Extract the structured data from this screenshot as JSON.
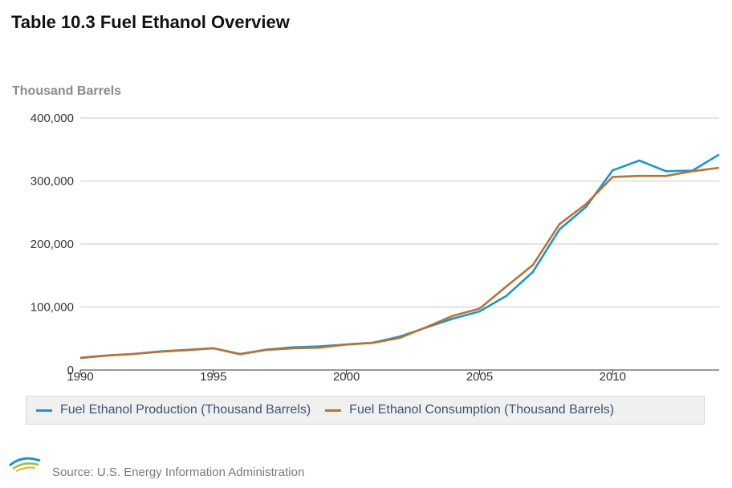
{
  "title": "Table 10.3 Fuel Ethanol Overview",
  "legend_items": [
    {
      "label": "Fuel Ethanol Production (Thousand Barrels)",
      "color": "#1b95d2"
    },
    {
      "label": "Fuel Ethanol Consumption (Thousand Barrels)",
      "color": "#b87333"
    }
  ],
  "source": {
    "logo_text": "eia",
    "text": "Source: U.S. Energy Information Administration"
  },
  "chart_data": {
    "type": "line",
    "title": "Table 10.3 Fuel Ethanol Overview",
    "ylabel": "Thousand Barrels",
    "xlabel": "",
    "xlim": [
      1990,
      2014
    ],
    "ylim": [
      0,
      400000
    ],
    "x_ticks": [
      1990,
      1995,
      2000,
      2005,
      2010
    ],
    "x_tick_labels": [
      "1990",
      "1995",
      "2000",
      "2005",
      "2010"
    ],
    "y_ticks": [
      0,
      100000,
      200000,
      300000,
      400000
    ],
    "y_tick_labels": [
      "0",
      "100,000",
      "200,000",
      "300,000",
      "400,000"
    ],
    "grid": true,
    "legend_position": "bottom",
    "x": [
      1990,
      1991,
      1992,
      1993,
      1994,
      1995,
      1996,
      1997,
      1998,
      1999,
      2000,
      2001,
      2002,
      2003,
      2004,
      2005,
      2006,
      2007,
      2008,
      2009,
      2010,
      2011,
      2012,
      2013,
      2014
    ],
    "series": [
      {
        "name": "Fuel Ethanol Production (Thousand Barrels)",
        "color": "#1b95d2",
        "values": [
          19500,
          23000,
          25500,
          29500,
          32000,
          34500,
          25500,
          32500,
          36000,
          37500,
          40500,
          43500,
          53000,
          67500,
          81500,
          93000,
          117500,
          155500,
          223000,
          259000,
          317000,
          332500,
          315500,
          316500,
          342000
        ]
      },
      {
        "name": "Fuel Ethanol Consumption (Thousand Barrels)",
        "color": "#b87333",
        "values": [
          19000,
          23000,
          25500,
          29000,
          31500,
          34500,
          25000,
          32000,
          34500,
          35500,
          40500,
          43000,
          51000,
          68000,
          86000,
          97500,
          132500,
          166500,
          231500,
          263500,
          306500,
          308000,
          308000,
          315500,
          321000
        ]
      }
    ]
  }
}
